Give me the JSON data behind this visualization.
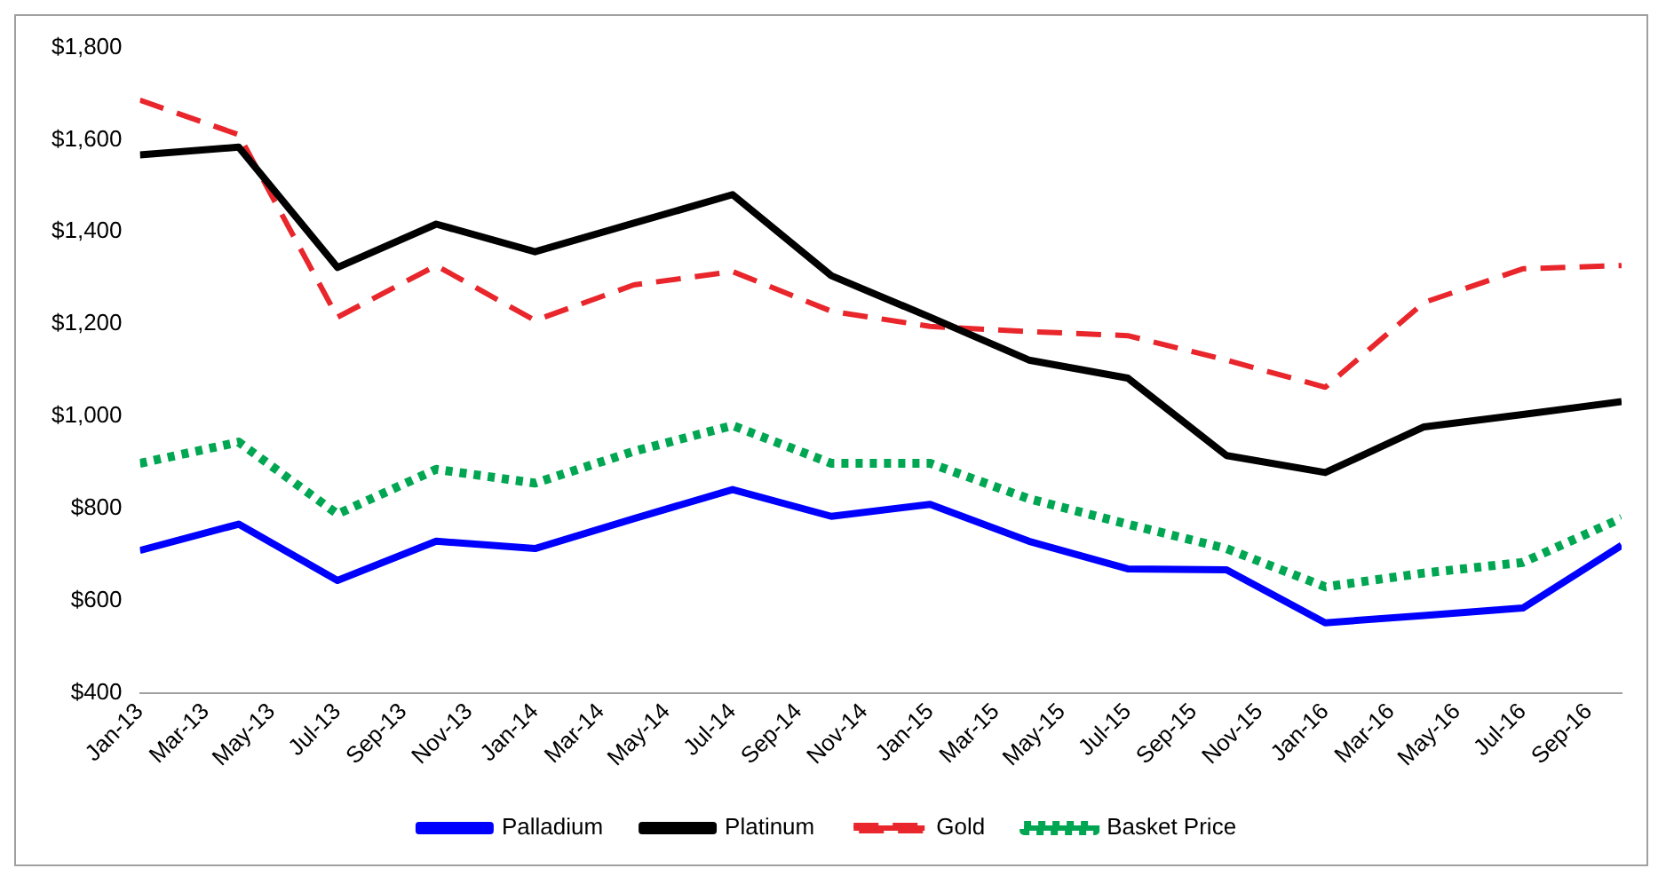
{
  "chart_data": {
    "type": "line",
    "x": [
      "2013-01",
      "2013-04",
      "2013-07",
      "2013-10",
      "2014-01",
      "2014-04",
      "2014-07",
      "2014-10",
      "2015-01",
      "2015-04",
      "2015-07",
      "2015-10",
      "2016-01",
      "2016-04",
      "2016-07",
      "2016-10"
    ],
    "series": [
      {
        "name": "Palladium",
        "color": "#0000ff",
        "line_style": "solid",
        "values": [
          709,
          766,
          644,
          729,
          713,
          778,
          841,
          783,
          809,
          729,
          669,
          667,
          552,
          568,
          584,
          720
        ]
      },
      {
        "name": "Platinum",
        "color": "#000000",
        "line_style": "solid",
        "values": [
          1567,
          1584,
          1323,
          1417,
          1357,
          1419,
          1481,
          1305,
          1215,
          1122,
          1083,
          915,
          878,
          977,
          1004,
          1032
        ]
      },
      {
        "name": "Gold",
        "color": "#e8262b",
        "line_style": "dashed",
        "values": [
          1686,
          1611,
          1215,
          1327,
          1208,
          1285,
          1314,
          1228,
          1195,
          1184,
          1175,
          1122,
          1063,
          1247,
          1320,
          1327
        ]
      },
      {
        "name": "Basket Price",
        "color": "#00a651",
        "line_style": "dotted",
        "values": [
          898,
          944,
          788,
          885,
          855,
          924,
          980,
          898,
          898,
          821,
          766,
          713,
          630,
          660,
          683,
          779
        ]
      }
    ],
    "xlim": [
      "2013-01",
      "2016-10"
    ],
    "xticks": [
      {
        "value": "2013-01",
        "label": "Jan-13"
      },
      {
        "value": "2013-03",
        "label": "Mar-13"
      },
      {
        "value": "2013-05",
        "label": "May-13"
      },
      {
        "value": "2013-07",
        "label": "Jul-13"
      },
      {
        "value": "2013-09",
        "label": "Sep-13"
      },
      {
        "value": "2013-11",
        "label": "Nov-13"
      },
      {
        "value": "2014-01",
        "label": "Jan-14"
      },
      {
        "value": "2014-03",
        "label": "Mar-14"
      },
      {
        "value": "2014-05",
        "label": "May-14"
      },
      {
        "value": "2014-07",
        "label": "Jul-14"
      },
      {
        "value": "2014-09",
        "label": "Sep-14"
      },
      {
        "value": "2014-11",
        "label": "Nov-14"
      },
      {
        "value": "2015-01",
        "label": "Jan-15"
      },
      {
        "value": "2015-03",
        "label": "Mar-15"
      },
      {
        "value": "2015-05",
        "label": "May-15"
      },
      {
        "value": "2015-07",
        "label": "Jul-15"
      },
      {
        "value": "2015-09",
        "label": "Sep-15"
      },
      {
        "value": "2015-11",
        "label": "Nov-15"
      },
      {
        "value": "2016-01",
        "label": "Jan-16"
      },
      {
        "value": "2016-03",
        "label": "Mar-16"
      },
      {
        "value": "2016-05",
        "label": "May-16"
      },
      {
        "value": "2016-07",
        "label": "Jul-16"
      },
      {
        "value": "2016-09",
        "label": "Sep-16"
      }
    ],
    "ylim": [
      400,
      1800
    ],
    "yticks": [
      {
        "value": 400,
        "label": "$400"
      },
      {
        "value": 600,
        "label": "$600"
      },
      {
        "value": 800,
        "label": "$800"
      },
      {
        "value": 1000,
        "label": "$1,000"
      },
      {
        "value": 1200,
        "label": "$1,200"
      },
      {
        "value": 1400,
        "label": "$1,400"
      },
      {
        "value": 1600,
        "label": "$1,600"
      },
      {
        "value": 1800,
        "label": "$1,800"
      }
    ],
    "grid": false,
    "legend": "bottom",
    "marker": "none"
  }
}
